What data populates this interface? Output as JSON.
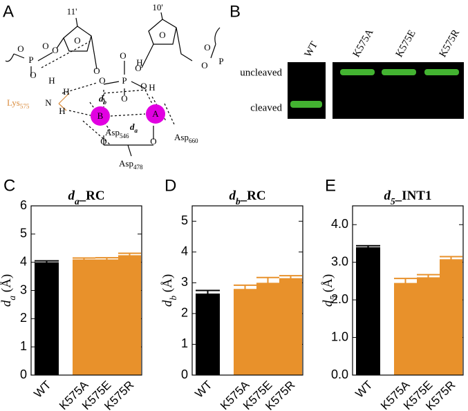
{
  "panel_a": {
    "label": "A",
    "atoms": [
      "11'",
      "10'",
      "O",
      "O",
      "O",
      "P",
      "O",
      "O",
      "O",
      "O",
      "P",
      "O",
      "O",
      "O",
      "H",
      "H",
      "O",
      "O",
      "O",
      "O",
      "P",
      "O",
      "O",
      "N",
      "H",
      "H",
      "H"
    ],
    "lys": {
      "text": "Lys",
      "sub": "575"
    },
    "asp": [
      {
        "text": "Asp",
        "sub": "546"
      },
      {
        "text": "Asp",
        "sub": "660"
      },
      {
        "text": "Asp",
        "sub": "478"
      }
    ],
    "ions": [
      "B",
      "A"
    ],
    "distances": [
      {
        "text": "d",
        "sub": "b"
      },
      {
        "text": "d",
        "sub": "a"
      }
    ]
  },
  "panel_b": {
    "label": "B",
    "lanes": [
      "WT",
      "K575A",
      "K575E",
      "K575R"
    ],
    "bands": [
      "uncleaved",
      "cleaved"
    ]
  },
  "chart_data": [
    {
      "type": "bar",
      "panel": "C",
      "title": {
        "symbol": "d",
        "sub": "a",
        "text": "_RC"
      },
      "ylabel": {
        "symbol": "d",
        "sub": "a",
        "text": " (Å)"
      },
      "categories": [
        "WT",
        "K575A",
        "K575E",
        "K575R"
      ],
      "values": [
        4.0,
        4.1,
        4.1,
        4.25
      ],
      "errors": [
        0.05,
        0.05,
        0.06,
        0.07
      ],
      "colors": [
        "#000000",
        "#e8912b",
        "#e8912b",
        "#e8912b"
      ],
      "ylim": [
        0,
        6
      ],
      "yticks": [
        0,
        1,
        2,
        3,
        4,
        5,
        6
      ]
    },
    {
      "type": "bar",
      "panel": "D",
      "title": {
        "symbol": "d",
        "sub": "b",
        "text": "_RC"
      },
      "ylabel": {
        "symbol": "d",
        "sub": "b",
        "text": " (Å)"
      },
      "categories": [
        "WT",
        "K575A",
        "K575E",
        "K575R"
      ],
      "values": [
        2.65,
        2.8,
        3.0,
        3.15
      ],
      "errors": [
        0.1,
        0.12,
        0.17,
        0.08
      ],
      "colors": [
        "#000000",
        "#e8912b",
        "#e8912b",
        "#e8912b"
      ],
      "ylim": [
        0,
        5.5
      ],
      "yticks": [
        0,
        1,
        2,
        3,
        4,
        5
      ]
    },
    {
      "type": "bar",
      "panel": "E",
      "title": {
        "symbol": "d",
        "sub": "5",
        "text": "_INT1"
      },
      "ylabel": {
        "symbol": "d",
        "sub": "5",
        "text": " (Å)"
      },
      "categories": [
        "WT",
        "K575A",
        "K575E",
        "K575R"
      ],
      "values": [
        3.4,
        2.45,
        2.6,
        3.08
      ],
      "errors": [
        0.04,
        0.12,
        0.07,
        0.07
      ],
      "colors": [
        "#000000",
        "#e8912b",
        "#e8912b",
        "#e8912b"
      ],
      "ylim": [
        0,
        4.5
      ],
      "yticks": [
        {
          "value": 0,
          "label": "0.0"
        },
        {
          "value": 1,
          "label": "1.0"
        },
        {
          "value": 2,
          "label": "2.0"
        },
        {
          "value": 3,
          "label": "3.0"
        },
        {
          "value": 4,
          "label": "4.0"
        }
      ]
    }
  ]
}
